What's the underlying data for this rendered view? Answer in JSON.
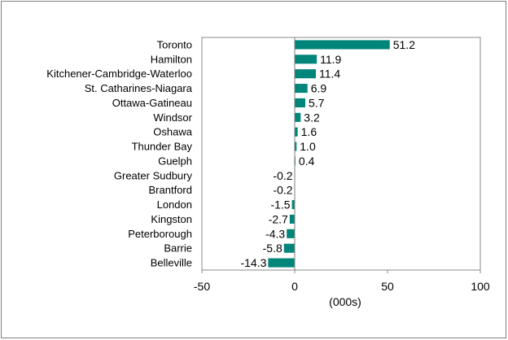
{
  "chart_data": {
    "type": "bar",
    "orientation": "horizontal",
    "categories": [
      "Toronto",
      "Hamilton",
      "Kitchener-Cambridge-Waterloo",
      "St. Catharines-Niagara",
      "Ottawa-Gatineau",
      "Windsor",
      "Oshawa",
      "Thunder Bay",
      "Guelph",
      "Greater Sudbury",
      "Brantford",
      "London",
      "Kingston",
      "Peterborough",
      "Barrie",
      "Belleville"
    ],
    "values": [
      51.2,
      11.9,
      11.4,
      6.9,
      5.7,
      3.2,
      1.6,
      1.0,
      0.4,
      -0.2,
      -0.2,
      -1.5,
      -2.7,
      -4.3,
      -5.8,
      -14.3
    ],
    "value_labels": [
      "51.2",
      "11.9",
      "11.4",
      "6.9",
      "5.7",
      "3.2",
      "1.6",
      "1.0",
      "0.4",
      "-0.2",
      "-0.2",
      "-1.5",
      "-2.7",
      "-4.3",
      "-5.8",
      "-14.3"
    ],
    "xlabel": "(000s)",
    "xlim": [
      -50,
      100
    ],
    "xticks": [
      "-50",
      "0",
      "50",
      "100"
    ],
    "grid": false,
    "legend": "none",
    "bar_color": "#00857a"
  }
}
